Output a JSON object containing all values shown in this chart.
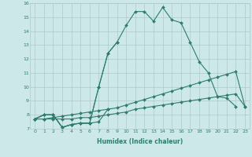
{
  "xlabel": "Humidex (Indice chaleur)",
  "x": [
    0,
    1,
    2,
    3,
    4,
    5,
    6,
    7,
    8,
    9,
    10,
    11,
    12,
    13,
    14,
    15,
    16,
    17,
    18,
    19,
    20,
    21,
    22,
    23
  ],
  "line1": [
    7.7,
    8.0,
    8.0,
    7.1,
    7.3,
    7.4,
    7.4,
    7.5,
    8.4,
    null,
    null,
    null,
    null,
    null,
    null,
    null,
    null,
    null,
    null,
    null,
    null,
    null,
    null,
    null
  ],
  "line2": [
    7.7,
    8.0,
    8.0,
    7.1,
    7.3,
    7.4,
    7.4,
    10.0,
    12.4,
    13.2,
    null,
    null,
    null,
    null,
    null,
    null,
    null,
    null,
    null,
    null,
    null,
    null,
    null,
    null
  ],
  "line3": [
    7.7,
    8.0,
    8.0,
    7.1,
    7.3,
    7.4,
    7.4,
    10.0,
    12.4,
    13.2,
    14.4,
    15.4,
    15.4,
    14.7,
    15.7,
    14.8,
    14.6,
    13.2,
    11.8,
    11.0,
    9.3,
    9.2,
    8.6,
    null
  ],
  "line4": [
    7.7,
    7.7,
    7.7,
    7.7,
    7.7,
    7.8,
    7.8,
    7.9,
    8.0,
    8.1,
    8.2,
    8.4,
    8.5,
    8.6,
    8.7,
    8.8,
    8.9,
    9.0,
    9.1,
    9.2,
    9.3,
    9.4,
    9.5,
    8.6
  ],
  "line5": [
    7.7,
    7.7,
    7.8,
    7.9,
    8.0,
    8.1,
    8.2,
    8.3,
    8.4,
    8.5,
    8.7,
    8.9,
    9.1,
    9.3,
    9.5,
    9.7,
    9.9,
    10.1,
    10.3,
    10.5,
    10.7,
    10.9,
    11.1,
    8.6
  ],
  "ylim": [
    7.0,
    16.0
  ],
  "yticks": [
    7,
    8,
    9,
    10,
    11,
    12,
    13,
    14,
    15,
    16
  ],
  "xlim": [
    -0.5,
    23.5
  ],
  "xticks": [
    0,
    1,
    2,
    3,
    4,
    5,
    6,
    7,
    8,
    9,
    10,
    11,
    12,
    13,
    14,
    15,
    16,
    17,
    18,
    19,
    20,
    21,
    22,
    23
  ],
  "line_color": "#2e7d6e",
  "bg_color": "#cce8e8",
  "grid_color": "#b0c8c8",
  "marker": "D",
  "markersize": 2.0,
  "linewidth": 0.8,
  "tick_fontsize": 4.5,
  "xlabel_fontsize": 5.5
}
